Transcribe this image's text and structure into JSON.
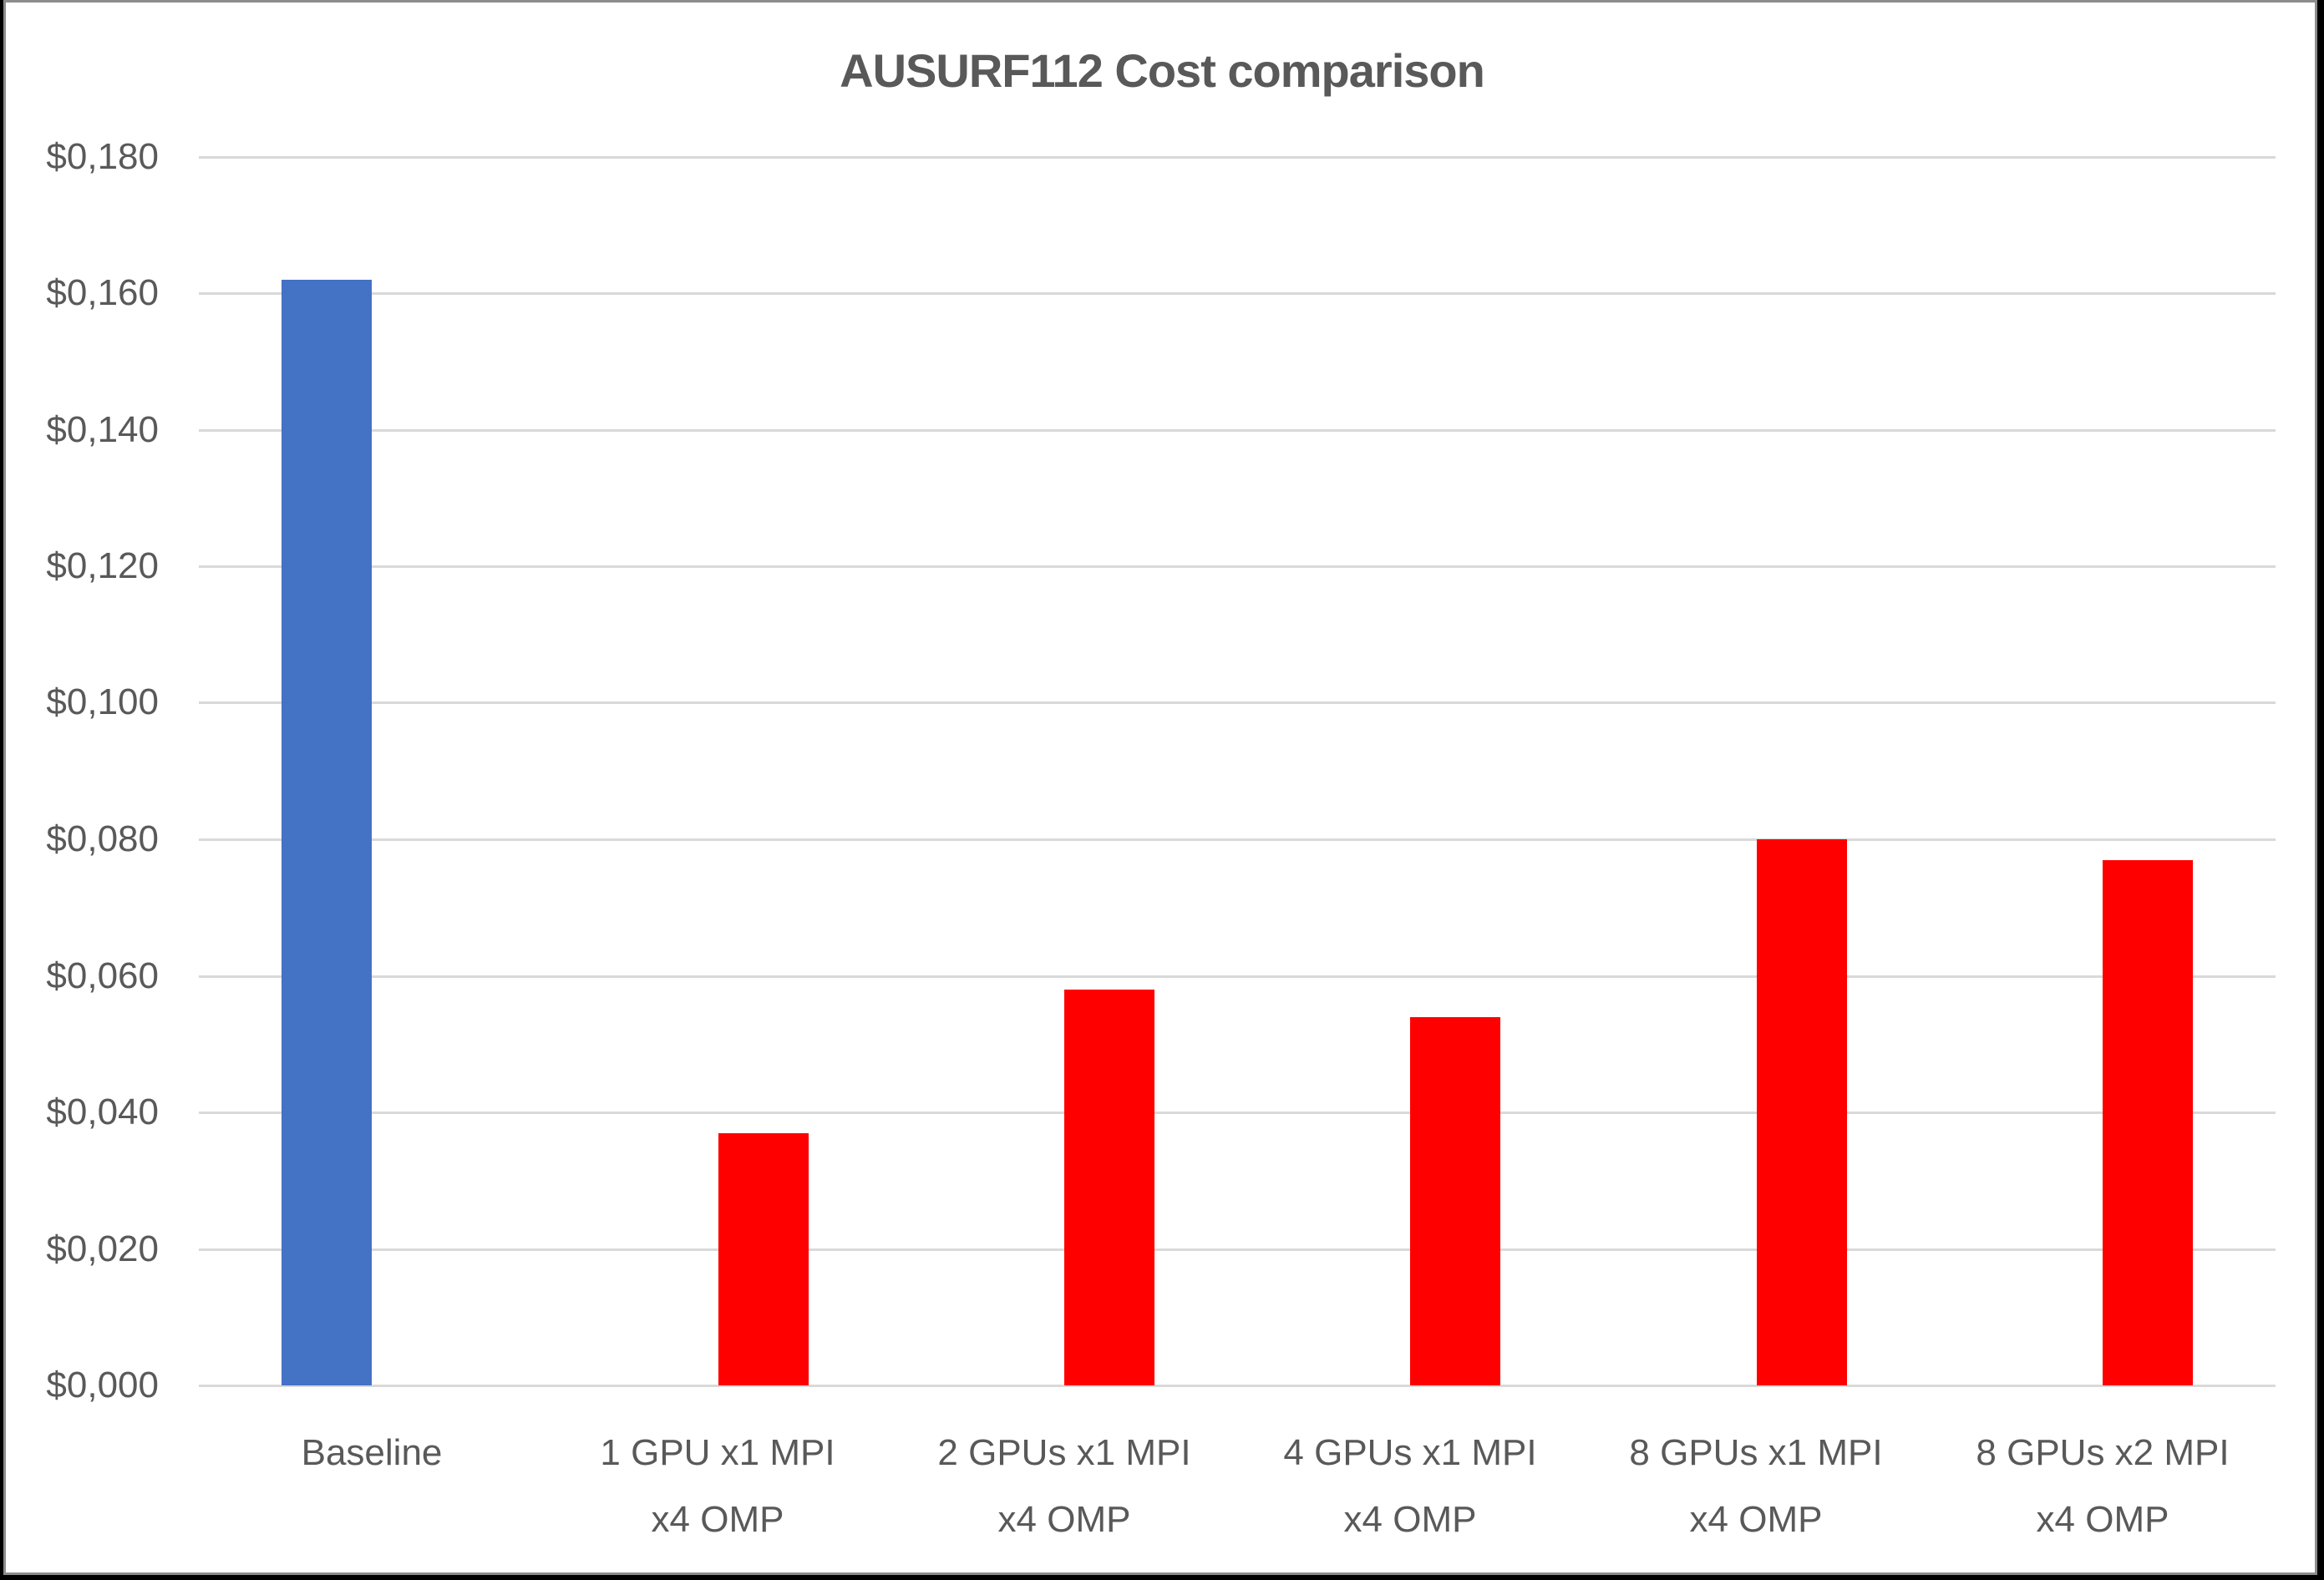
{
  "chart_data": {
    "type": "bar",
    "title": "AUSURF112 Cost comparison",
    "xlabel": "",
    "ylabel": "",
    "categories": [
      "Baseline",
      "1 GPU x1 MPI x4 OMP",
      "2 GPUs x1 MPI x4 OMP",
      "4 GPUs x1 MPI x4 OMP",
      "8 GPUs x1 MPI x4 OMP",
      "8 GPUs x2 MPI x4 OMP"
    ],
    "series": [
      {
        "name": "Baseline",
        "color": "#4472c4",
        "values": [
          0.162,
          null,
          null,
          null,
          null,
          null
        ]
      },
      {
        "name": "GPU",
        "color": "#ff0000",
        "values": [
          null,
          0.037,
          0.058,
          0.054,
          0.08,
          0.077
        ]
      }
    ],
    "values": [
      0.162,
      0.037,
      0.058,
      0.054,
      0.08,
      0.077
    ],
    "ylim": [
      0,
      0.18
    ],
    "yticks": [
      "$0,000",
      "$0,020",
      "$0,040",
      "$0,060",
      "$0,080",
      "$0,100",
      "$0,120",
      "$0,140",
      "$0,160",
      "$0,180"
    ],
    "grid": true,
    "legend": "none"
  },
  "title": "AUSURF112 Cost comparison",
  "yaxis": {
    "ticks": [
      "$0,180",
      "$0,160",
      "$0,140",
      "$0,120",
      "$0,100",
      "$0,080",
      "$0,060",
      "$0,040",
      "$0,020",
      "$0,000"
    ]
  },
  "xaxis": {
    "labels": [
      {
        "line1": "Baseline",
        "line2": ""
      },
      {
        "line1": "1 GPU x1 MPI",
        "line2": "x4 OMP"
      },
      {
        "line1": "2 GPUs x1 MPI",
        "line2": "x4 OMP"
      },
      {
        "line1": "4 GPUs x1 MPI",
        "line2": "x4 OMP"
      },
      {
        "line1": "8 GPUs x1 MPI",
        "line2": "x4 OMP"
      },
      {
        "line1": "8 GPUs x2 MPI",
        "line2": "x4 OMP"
      }
    ]
  },
  "colors": {
    "baseline": "#4472c4",
    "gpu": "#ff0000",
    "text": "#595959",
    "grid": "#d9d9d9"
  }
}
